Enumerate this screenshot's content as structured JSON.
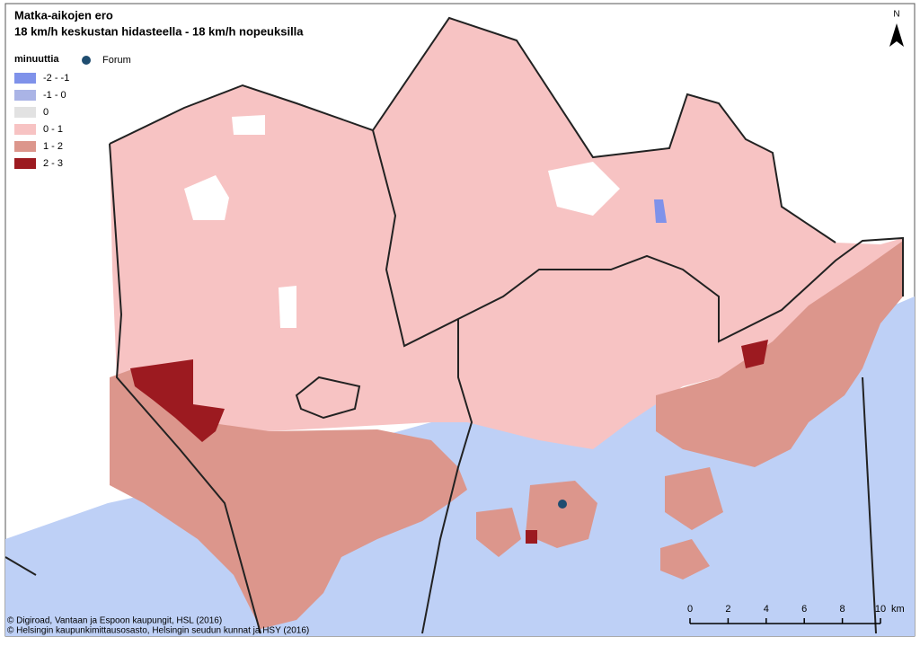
{
  "title": [
    "Matka-aikojen ero",
    "18 km/h keskustan hidasteella - 18 km/h nopeuksilla"
  ],
  "legend": {
    "title": "minuuttia",
    "items": [
      {
        "label": "-2 - -1",
        "color": "#7f92ea"
      },
      {
        "label": "-1 - 0",
        "color": "#aab4e6"
      },
      {
        "label": "0",
        "color": "#e2e2e2"
      },
      {
        "label": "0 - 1",
        "color": "#f7c3c3"
      },
      {
        "label": "1 - 2",
        "color": "#dc968c"
      },
      {
        "label": "2 - 3",
        "color": "#9c1a20"
      }
    ]
  },
  "point": {
    "label": "Forum",
    "color": "#1f4d70"
  },
  "north": "N",
  "scale_bar": {
    "ticks": [
      0,
      2,
      4,
      6,
      8,
      10
    ],
    "unit": "km"
  },
  "credits": [
    "© Digiroad, Vantaan ja Espoon kaupungit, HSL (2016)",
    "© Helsingin kaupunkimittausosasto, Helsingin seudun kunnat ja HSY (2016)"
  ]
}
